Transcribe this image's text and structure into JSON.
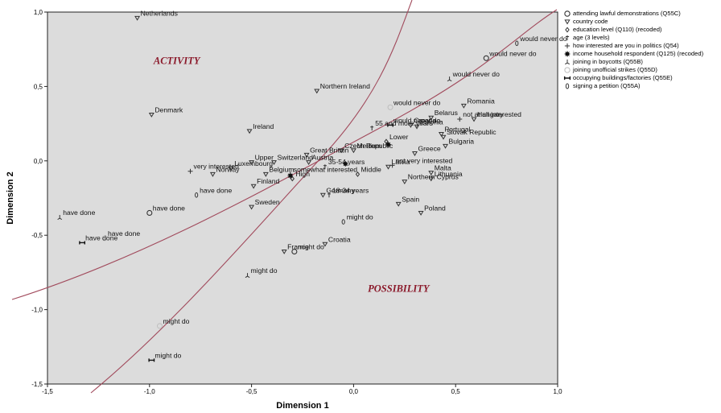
{
  "chart_data": {
    "type": "scatter",
    "xlabel": "Dimension 1",
    "ylabel": "Dimension 2",
    "xlim": [
      -1.5,
      1.0
    ],
    "ylim": [
      -1.5,
      1.0
    ],
    "x_ticks": [
      "-1,5",
      "-1,0",
      "-0,5",
      "0,0",
      "0,5",
      "1,0"
    ],
    "y_ticks": [
      "-1,5",
      "-1,0",
      "-0,5",
      "0,0",
      "0,5",
      "1,0"
    ],
    "grid": false,
    "legend_position": "right",
    "annotations": [
      {
        "text": "ACTIVITY",
        "x": -0.98,
        "y": 0.65
      },
      {
        "text": "POSSIBILITY",
        "x": 0.07,
        "y": -0.88
      }
    ],
    "series": [
      {
        "name": "attending lawful demonstrations (Q55C)",
        "symbol": "circle",
        "points": [
          {
            "label": "would never do",
            "x": 0.65,
            "y": 0.69
          },
          {
            "label": "have done",
            "x": -1.0,
            "y": -0.35
          },
          {
            "label": "might do",
            "x": -0.29,
            "y": -0.61
          }
        ]
      },
      {
        "name": "country code",
        "symbol": "triangle-down",
        "points": [
          {
            "label": "Netherlands",
            "x": -1.06,
            "y": 0.96
          },
          {
            "label": "Northern Ireland",
            "x": -0.18,
            "y": 0.47
          },
          {
            "label": "Denmark",
            "x": -0.99,
            "y": 0.31
          },
          {
            "label": "Ireland",
            "x": -0.51,
            "y": 0.2
          },
          {
            "label": "Belarus",
            "x": 0.38,
            "y": 0.29
          },
          {
            "label": "Romania",
            "x": 0.54,
            "y": 0.37
          },
          {
            "label": "Estonia",
            "x": 0.31,
            "y": 0.23
          },
          {
            "label": "Croatia",
            "x": 0.28,
            "y": 0.24
          },
          {
            "label": "Hungary",
            "x": 0.59,
            "y": 0.28
          },
          {
            "label": "Portugal",
            "x": 0.43,
            "y": 0.18
          },
          {
            "label": "Slovak Republic",
            "x": 0.44,
            "y": 0.16
          },
          {
            "label": "Czech Republic",
            "x": -0.06,
            "y": 0.07
          },
          {
            "label": "Great Britain",
            "x": -0.23,
            "y": 0.04
          },
          {
            "label": "Medium",
            "x": 0.0,
            "y": 0.07
          },
          {
            "label": "Greece",
            "x": 0.3,
            "y": 0.05
          },
          {
            "label": "Bulgaria",
            "x": 0.45,
            "y": 0.1
          },
          {
            "label": "Switzerland",
            "x": -0.39,
            "y": -0.01
          },
          {
            "label": "Austria",
            "x": -0.22,
            "y": -0.01
          },
          {
            "label": "Luxembourg",
            "x": -0.6,
            "y": -0.05
          },
          {
            "label": "Upper",
            "x": -0.5,
            "y": -0.01
          },
          {
            "label": "Norway",
            "x": -0.69,
            "y": -0.09
          },
          {
            "label": "Belgium",
            "x": -0.43,
            "y": -0.09
          },
          {
            "label": "Latvia",
            "x": 0.17,
            "y": -0.04
          },
          {
            "label": "Malta",
            "x": 0.38,
            "y": -0.08
          },
          {
            "label": "Lithuania",
            "x": 0.38,
            "y": -0.12
          },
          {
            "label": "Northern Cyprus",
            "x": 0.25,
            "y": -0.14
          },
          {
            "label": "Finland",
            "x": -0.49,
            "y": -0.17
          },
          {
            "label": "Germany",
            "x": -0.15,
            "y": -0.23
          },
          {
            "label": "Spain",
            "x": 0.22,
            "y": -0.29
          },
          {
            "label": "Sweden",
            "x": -0.5,
            "y": -0.31
          },
          {
            "label": "Poland",
            "x": 0.33,
            "y": -0.35
          },
          {
            "label": "France",
            "x": -0.34,
            "y": -0.61
          },
          {
            "label": "Croatia",
            "x": -0.14,
            "y": -0.56
          }
        ]
      },
      {
        "name": "education level (Q110) (recoded)",
        "symbol": "diamond",
        "points": [
          {
            "label": "Lower",
            "x": 0.16,
            "y": 0.13
          },
          {
            "label": "High",
            "x": -0.3,
            "y": -0.12
          },
          {
            "label": "Middle",
            "x": 0.02,
            "y": -0.09
          }
        ]
      },
      {
        "name": "age (3 levels)",
        "symbol": "dagger",
        "points": [
          {
            "label": "55 and more years",
            "x": 0.09,
            "y": 0.22
          },
          {
            "label": "35-54 years",
            "x": -0.14,
            "y": -0.04
          },
          {
            "label": "18-34 years",
            "x": -0.12,
            "y": -0.23
          }
        ]
      },
      {
        "name": "how interested are you in politics (Q54)",
        "symbol": "plus",
        "points": [
          {
            "label": "not at all interested",
            "x": 0.52,
            "y": 0.28
          },
          {
            "label": "very interested",
            "x": -0.8,
            "y": -0.07
          },
          {
            "label": "somewhat interested",
            "x": -0.31,
            "y": -0.09
          },
          {
            "label": "not very interested",
            "x": 0.19,
            "y": -0.03
          }
        ]
      },
      {
        "name": "income household respondent (Q125) (recoded)",
        "symbol": "star",
        "points": [
          {
            "label": "",
            "x": 0.17,
            "y": 0.11
          },
          {
            "label": "",
            "x": -0.31,
            "y": -0.1
          },
          {
            "label": "",
            "x": -0.04,
            "y": -0.02
          }
        ]
      },
      {
        "name": "joining in boycotts (Q55B)",
        "symbol": "tri-up",
        "points": [
          {
            "label": "would never do",
            "x": 0.47,
            "y": 0.55
          },
          {
            "label": "have done",
            "x": -1.44,
            "y": -0.38
          },
          {
            "label": "might do",
            "x": -0.52,
            "y": -0.77
          }
        ]
      },
      {
        "name": "joining unofficial strikes (Q55D)",
        "symbol": "circle-light",
        "points": [
          {
            "label": "would never do",
            "x": 0.18,
            "y": 0.36
          },
          {
            "label": "have done",
            "x": -1.22,
            "y": -0.52
          },
          {
            "label": "might do",
            "x": -0.95,
            "y": -1.11
          }
        ]
      },
      {
        "name": "occupying buildings/factories (Q55E)",
        "symbol": "bowtie",
        "points": [
          {
            "label": "would never do",
            "x": 0.18,
            "y": 0.24
          },
          {
            "label": "have done",
            "x": -1.33,
            "y": -0.55
          },
          {
            "label": "might do",
            "x": -0.99,
            "y": -1.34
          }
        ]
      },
      {
        "name": "signing a petition (Q55A)",
        "symbol": "ellipse",
        "points": [
          {
            "label": "would never do",
            "x": 0.8,
            "y": 0.79
          },
          {
            "label": "have done",
            "x": -0.77,
            "y": -0.23
          },
          {
            "label": "might do",
            "x": -0.05,
            "y": -0.41
          }
        ]
      }
    ]
  }
}
